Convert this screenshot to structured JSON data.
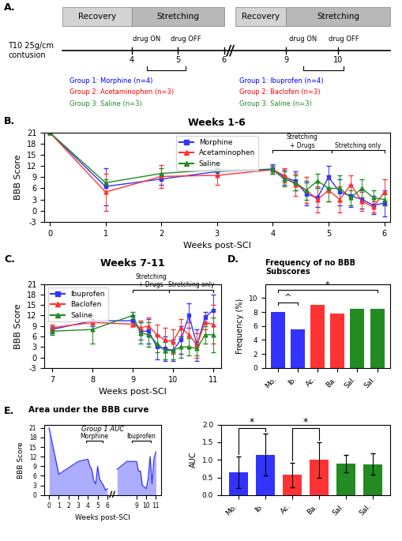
{
  "chart_data": [
    {
      "type": "timeline",
      "panel_label": "A.",
      "phases": [
        "Recovery",
        "Stretching",
        "Recovery",
        "Stretching"
      ],
      "colors": [
        "#d3d3d3",
        "#b8b8b8",
        "#d3d3d3",
        "#b8b8b8"
      ],
      "xticks": [
        4,
        5,
        6,
        9,
        10
      ],
      "drug_labels": [
        "drug ON",
        "drug OFF",
        "drug ON",
        "drug OFF"
      ],
      "start_label": "T10 25g/cm\ncontusion",
      "groups": [
        [
          {
            "name": "Group 1: Morphine (n=4)",
            "color": "#0000FF"
          },
          {
            "name": "Group 2: Acetaminophen (n=3)",
            "color": "#FF0000"
          },
          {
            "name": "Group 3: Saline (n=3)",
            "color": "#228B22"
          }
        ],
        [
          {
            "name": "Group 1: Ibuprofen (n=4)",
            "color": "#0000FF"
          },
          {
            "name": "Group 2: Baclofen (n=3)",
            "color": "#FF0000"
          },
          {
            "name": "Group 3: Saline (n=3)",
            "color": "#228B22"
          }
        ]
      ]
    },
    {
      "type": "line",
      "panel_label": "B.",
      "title": "Weeks 1-6",
      "x_label": "Weeks post-SCI",
      "y_label": "BBB Score",
      "xlim": [
        -0.1,
        6.1
      ],
      "ylim": [
        -3,
        21
      ],
      "xticks": [
        0,
        1,
        2,
        3,
        4,
        5,
        6
      ],
      "yticks": [
        -3,
        0,
        3,
        6,
        9,
        12,
        15,
        18,
        21
      ],
      "legend": "upper center",
      "x": [
        0,
        1,
        2,
        3,
        4,
        4.2,
        4.4,
        4.6,
        4.8,
        5.0,
        5.2,
        5.4,
        5.6,
        5.8,
        6.0
      ],
      "series": [
        {
          "name": "Morphine",
          "color": "#3333FF",
          "marker": "square",
          "values": [
            21,
            6.5,
            8.5,
            10.5,
            11.2,
            9.0,
            8.0,
            4.5,
            3.5,
            9.0,
            5.0,
            4.0,
            3.0,
            1.5,
            2.0
          ],
          "errors": [
            0,
            5.0,
            1.5,
            1.0,
            1.2,
            2.0,
            2.5,
            3.0,
            2.5,
            3.0,
            3.5,
            3.0,
            2.5,
            2.5,
            3.5
          ]
        },
        {
          "name": "Acetaminophen",
          "color": "#FF3333",
          "marker": "triangle",
          "values": [
            21,
            5.0,
            9.2,
            9.5,
            11.0,
            9.5,
            7.0,
            5.5,
            3.0,
            5.5,
            3.0,
            7.0,
            2.5,
            1.0,
            5.0
          ],
          "errors": [
            0,
            5.0,
            3.0,
            2.5,
            1.0,
            2.0,
            3.0,
            3.5,
            3.5,
            3.0,
            3.5,
            2.5,
            2.5,
            1.5,
            3.5
          ]
        },
        {
          "name": "Saline",
          "color": "#228B22",
          "marker": "triangle",
          "values": [
            21,
            7.5,
            10.0,
            11.0,
            11.0,
            8.5,
            7.5,
            5.5,
            8.0,
            6.0,
            6.0,
            3.5,
            6.0,
            3.5,
            3.0
          ],
          "errors": [
            0,
            1.0,
            1.5,
            0.5,
            1.0,
            2.0,
            2.0,
            2.5,
            2.0,
            3.5,
            3.5,
            2.0,
            2.5,
            2.0,
            1.5
          ]
        }
      ],
      "annotations": [
        {
          "text": "Stretching\n+ Drugs",
          "x0": 4.0,
          "x1": 5.05
        },
        {
          "text": "Stretching only",
          "x0": 5.05,
          "x1": 6.0
        }
      ]
    },
    {
      "type": "line",
      "panel_label": "C.",
      "title": "Weeks 7-11",
      "x_label": "Weeks post-SCI",
      "y_label": "BBB Score",
      "xlim": [
        6.8,
        11.2
      ],
      "ylim": [
        -3,
        21
      ],
      "xticks": [
        7,
        8,
        9,
        10,
        11
      ],
      "yticks": [
        -3,
        0,
        3,
        6,
        9,
        12,
        15,
        18,
        21
      ],
      "legend": "upper left",
      "x": [
        7,
        8,
        9,
        9.2,
        9.4,
        9.6,
        9.8,
        10.0,
        10.2,
        10.4,
        10.6,
        10.8,
        11.0
      ],
      "series": [
        {
          "name": "Ibuprofen",
          "color": "#3333FF",
          "marker": "square",
          "values": [
            8.0,
            10.5,
            10.5,
            7.5,
            7.5,
            3.0,
            2.5,
            2.0,
            5.0,
            12.0,
            3.5,
            11.5,
            13.5
          ],
          "errors": [
            1.0,
            1.5,
            1.5,
            2.5,
            3.5,
            3.5,
            3.5,
            3.0,
            4.0,
            3.5,
            4.5,
            1.5,
            4.5
          ]
        },
        {
          "name": "Baclofen",
          "color": "#FF3333",
          "marker": "triangle",
          "values": [
            8.5,
            10.0,
            9.5,
            8.5,
            9.0,
            6.5,
            5.0,
            4.5,
            8.5,
            6.5,
            3.5,
            10.0,
            9.5
          ],
          "errors": [
            1.0,
            0.5,
            0.5,
            2.0,
            2.5,
            3.0,
            3.5,
            3.5,
            2.5,
            3.5,
            3.5,
            2.0,
            5.5
          ]
        },
        {
          "name": "Saline",
          "color": "#228B22",
          "marker": "triangle",
          "values": [
            7.5,
            8.0,
            12.0,
            7.0,
            6.5,
            4.0,
            2.0,
            2.0,
            3.0,
            3.0,
            2.5,
            6.5,
            6.5
          ],
          "errors": [
            1.0,
            4.0,
            1.0,
            3.0,
            3.5,
            2.5,
            2.5,
            2.5,
            3.0,
            2.5,
            2.0,
            2.5,
            5.0
          ]
        }
      ],
      "annotations": [
        {
          "text": "Stretching\n+ Drugs",
          "x0": 9.0,
          "x1": 9.9
        },
        {
          "text": "Stretching only",
          "x0": 9.9,
          "x1": 11.0
        }
      ]
    },
    {
      "type": "bar",
      "panel_label": "D.",
      "title": "Frequency of no BBB Subscores",
      "y_label": "Frequency (%)",
      "categories": [
        "Mo.",
        "Ib.",
        "Ac.",
        "Ba.",
        "Sal.",
        "Sal."
      ],
      "values": [
        8.0,
        5.5,
        9.0,
        7.8,
        8.5,
        8.5
      ],
      "colors": [
        "#3333FF",
        "#3333FF",
        "#FF3333",
        "#FF3333",
        "#228B22",
        "#228B22"
      ],
      "ylim": [
        0,
        12
      ],
      "yticks": [
        0,
        2,
        4,
        6,
        8,
        10
      ],
      "significance": [
        {
          "between": [
            0,
            1
          ],
          "label": "^"
        },
        {
          "between": [
            0,
            5
          ],
          "label": "*"
        }
      ]
    },
    {
      "type": "area",
      "panel_label": "E.",
      "title": "Area under the BBB curve",
      "x_label": "Weeks post-SCI",
      "y_label": "BBB Score",
      "xlim": [
        -0.5,
        11.5
      ],
      "ylim": [
        0,
        22
      ],
      "xticks": [
        0,
        1,
        2,
        3,
        4,
        5,
        6,
        9,
        10,
        11
      ],
      "yticks": [
        0,
        3,
        6,
        9,
        12,
        15,
        18,
        21
      ],
      "series": [
        {
          "color": "#3333FF",
          "x": [
            0,
            1,
            2,
            3,
            4,
            4.2,
            4.4,
            4.6,
            4.8,
            5.0,
            5.2,
            5.4,
            5.6,
            5.8,
            6.0
          ],
          "values": [
            21,
            6.5,
            8.5,
            10.5,
            11.2,
            9.0,
            8.0,
            4.5,
            3.5,
            9.0,
            5.0,
            4.0,
            3.0,
            1.5,
            2.0
          ]
        },
        {
          "color": "#3333FF",
          "x": [
            7,
            8,
            9,
            9.2,
            9.4,
            9.6,
            9.8,
            10.0,
            10.2,
            10.4,
            10.6,
            10.8,
            11.0
          ],
          "values": [
            8.0,
            10.5,
            10.5,
            7.5,
            7.5,
            3.0,
            2.5,
            2.0,
            5.0,
            12.0,
            3.5,
            11.5,
            13.5
          ]
        }
      ],
      "note": "Group 1 AUC",
      "annotations": [
        {
          "text": "Morphine",
          "x0": 3.8,
          "x1": 5.5
        },
        {
          "text": "Ibuprofen",
          "x0": 8.5,
          "x1": 10.5
        }
      ]
    },
    {
      "type": "bar",
      "y_label": "AUC",
      "categories": [
        "Mo.",
        "Ib.",
        "Ac.",
        "Ba.",
        "Sal.",
        "Sal."
      ],
      "values": [
        0.65,
        1.15,
        0.57,
        1.0,
        0.9,
        0.88
      ],
      "errors": [
        0.45,
        0.6,
        0.35,
        0.5,
        0.25,
        0.3
      ],
      "colors": [
        "#3333FF",
        "#3333FF",
        "#FF3333",
        "#FF3333",
        "#228B22",
        "#228B22"
      ],
      "ylim": [
        0,
        2.0
      ],
      "yticks": [
        {
          "value": 0.0,
          "label": "0.0"
        },
        0.5,
        {
          "value": 1.0,
          "label": "1.0"
        },
        1.5,
        {
          "value": 2.0,
          "label": "2.0"
        }
      ],
      "significance": [
        {
          "between": [
            0,
            1
          ],
          "label": "*"
        },
        {
          "between": [
            2,
            3
          ],
          "label": "*"
        }
      ]
    }
  ]
}
